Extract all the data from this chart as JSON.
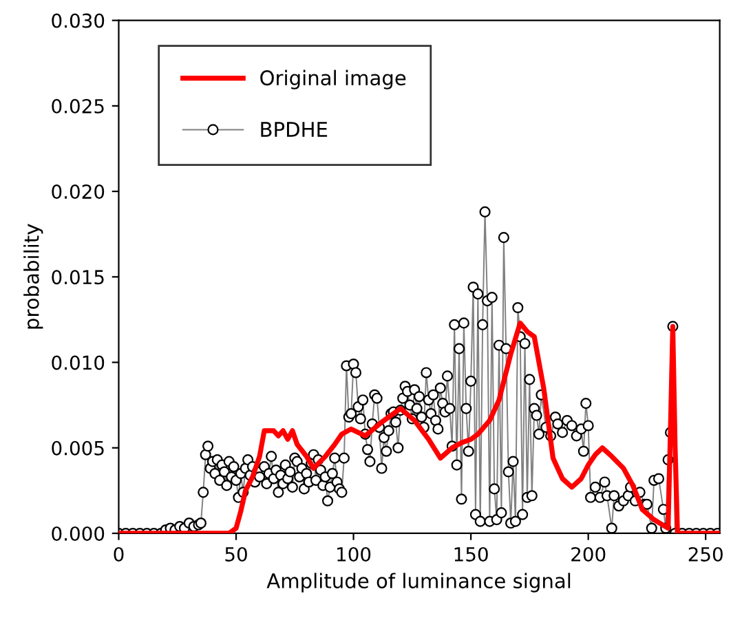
{
  "chart_data": {
    "type": "line",
    "xlabel": "Amplitude of luminance signal",
    "ylabel": "probability",
    "xlim": [
      0,
      256
    ],
    "xticks": [
      0,
      50,
      100,
      150,
      200,
      250
    ],
    "ylim": [
      0,
      0.03
    ],
    "yticks": [
      {
        "value": 0,
        "label": "0.000"
      },
      {
        "value": 0.005,
        "label": "0.005"
      },
      {
        "value": 0.01,
        "label": "0.010"
      },
      {
        "value": 0.015,
        "label": "0.015"
      },
      {
        "value": 0.02,
        "label": "0.020"
      },
      {
        "value": 0.025,
        "label": "0.025"
      },
      {
        "value": 0.03,
        "label": "0.030"
      }
    ],
    "legend": "top left",
    "grid": false,
    "series": [
      {
        "name": "Original image",
        "color": "#ff0000",
        "marker": "none",
        "x": [
          0,
          47,
          50,
          52,
          54,
          57,
          60,
          62,
          66,
          68,
          70,
          72,
          74,
          76,
          80,
          83,
          88,
          92,
          95,
          99,
          105,
          112,
          120,
          126,
          132,
          137,
          142,
          146,
          150,
          153,
          158,
          162,
          167,
          171,
          174,
          177,
          181,
          185,
          189,
          193,
          197,
          200,
          203,
          206,
          210,
          215,
          219,
          223,
          228,
          234,
          235,
          236,
          237,
          238,
          256
        ],
        "values": [
          0,
          0,
          0.0003,
          0.0013,
          0.0025,
          0.0033,
          0.0045,
          0.006,
          0.006,
          0.0057,
          0.006,
          0.0055,
          0.006,
          0.0052,
          0.0045,
          0.0038,
          0.0045,
          0.0052,
          0.0058,
          0.0061,
          0.0057,
          0.0065,
          0.0073,
          0.0066,
          0.0055,
          0.0044,
          0.005,
          0.0053,
          0.0055,
          0.0058,
          0.0066,
          0.0078,
          0.0105,
          0.0123,
          0.0118,
          0.0115,
          0.0085,
          0.0044,
          0.0032,
          0.0027,
          0.0032,
          0.004,
          0.0046,
          0.005,
          0.0045,
          0.0038,
          0.0028,
          0.0014,
          0.0008,
          0.0003,
          0.006,
          0.0121,
          0.005,
          0,
          0
        ]
      },
      {
        "name": "BPDHE",
        "color": "#000000",
        "marker": "circle",
        "x": [
          0,
          3,
          6,
          9,
          12,
          15,
          18,
          20,
          22,
          24,
          26,
          28,
          30,
          32,
          34,
          35,
          36,
          37,
          38,
          39,
          40,
          41,
          42,
          43,
          44,
          45,
          46,
          47,
          48,
          49,
          50,
          51,
          52,
          53,
          54,
          55,
          56,
          57,
          58,
          59,
          60,
          62,
          63,
          64,
          65,
          66,
          67,
          68,
          69,
          70,
          71,
          72,
          73,
          74,
          75,
          76,
          77,
          78,
          79,
          80,
          81,
          82,
          83,
          84,
          85,
          86,
          87,
          88,
          89,
          90,
          91,
          92,
          93,
          94,
          95,
          96,
          97,
          98,
          99,
          100,
          101,
          102,
          103,
          104,
          105,
          106,
          107,
          108,
          109,
          110,
          111,
          112,
          113,
          114,
          115,
          116,
          117,
          118,
          119,
          120,
          121,
          122,
          123,
          124,
          125,
          126,
          127,
          128,
          129,
          130,
          131,
          132,
          133,
          134,
          135,
          136,
          137,
          138,
          139,
          140,
          141,
          142,
          143,
          144,
          145,
          146,
          147,
          148,
          149,
          150,
          151,
          152,
          153,
          154,
          155,
          156,
          157,
          158,
          159,
          160,
          161,
          162,
          163,
          164,
          165,
          166,
          167,
          168,
          169,
          170,
          171,
          172,
          173,
          174,
          175,
          176,
          177,
          178,
          179,
          180,
          182,
          184,
          186,
          187,
          189,
          191,
          193,
          195,
          197,
          198,
          199,
          200,
          201,
          203,
          205,
          207,
          208,
          210,
          211,
          213,
          215,
          217,
          218,
          220,
          222,
          224,
          225,
          227,
          228,
          230,
          232,
          233,
          234,
          235,
          236,
          237,
          240,
          243,
          246,
          249,
          252,
          255
        ],
        "values": [
          0,
          0,
          0,
          0,
          0,
          0,
          0,
          0.0002,
          0.0003,
          0.0002,
          0.0004,
          0.0003,
          0.0006,
          0.0004,
          0.0005,
          0.0006,
          0.0024,
          0.0046,
          0.0051,
          0.0038,
          0.0042,
          0.0035,
          0.0043,
          0.0031,
          0.004,
          0.0036,
          0.0028,
          0.0042,
          0.0033,
          0.0039,
          0.0031,
          0.0021,
          0.0035,
          0.0024,
          0.0038,
          0.0043,
          0.0034,
          0.0039,
          0.003,
          0.0036,
          0.0033,
          0.0039,
          0.0029,
          0.0035,
          0.0045,
          0.0032,
          0.0037,
          0.0024,
          0.0034,
          0.0029,
          0.004,
          0.0032,
          0.0036,
          0.0027,
          0.0044,
          0.0042,
          0.0033,
          0.0038,
          0.0026,
          0.0035,
          0.003,
          0.0041,
          0.0046,
          0.0031,
          0.0043,
          0.0037,
          0.0028,
          0.0033,
          0.0019,
          0.0027,
          0.0035,
          0.0044,
          0.003,
          0.0026,
          0.0024,
          0.0044,
          0.0098,
          0.0068,
          0.007,
          0.0099,
          0.0094,
          0.0074,
          0.0067,
          0.0078,
          0.0058,
          0.0049,
          0.0042,
          0.0064,
          0.0081,
          0.0079,
          0.0062,
          0.0038,
          0.0056,
          0.0048,
          0.006,
          0.007,
          0.0071,
          0.0065,
          0.005,
          0.0072,
          0.0079,
          0.0086,
          0.0083,
          0.0075,
          0.0067,
          0.0084,
          0.0073,
          0.008,
          0.0068,
          0.0062,
          0.0094,
          0.0078,
          0.007,
          0.0081,
          0.0066,
          0.0061,
          0.0085,
          0.0076,
          0.0071,
          0.0092,
          0.0073,
          0.0051,
          0.0122,
          0.004,
          0.0108,
          0.002,
          0.0123,
          0.0073,
          0.0048,
          0.0089,
          0.0144,
          0.0011,
          0.014,
          0.0007,
          0.0122,
          0.0188,
          0.0136,
          0.0007,
          0.0138,
          0.0026,
          0.0008,
          0.011,
          0.0012,
          0.0173,
          0.0108,
          0.0036,
          0.0006,
          0.0042,
          0.0007,
          0.0132,
          0.0115,
          0.0011,
          0.0111,
          0.0021,
          0.009,
          0.0022,
          0.0073,
          0.0069,
          0.0058,
          0.0081,
          0.0062,
          0.0057,
          0.0068,
          0.0064,
          0.0059,
          0.0066,
          0.0063,
          0.0057,
          0.0061,
          0.0048,
          0.0076,
          0.0063,
          0.0021,
          0.0027,
          0.0021,
          0.003,
          0.0022,
          0.0003,
          0.0022,
          0.0016,
          0.0019,
          0.0022,
          0.0027,
          0.0019,
          0.0024,
          0.0017,
          0.0017,
          0.0003,
          0.0031,
          0.0032,
          0.0014,
          0.0003,
          0.0043,
          0.0059,
          0.0121,
          0,
          0,
          0,
          0,
          0,
          0,
          0
        ]
      }
    ]
  }
}
